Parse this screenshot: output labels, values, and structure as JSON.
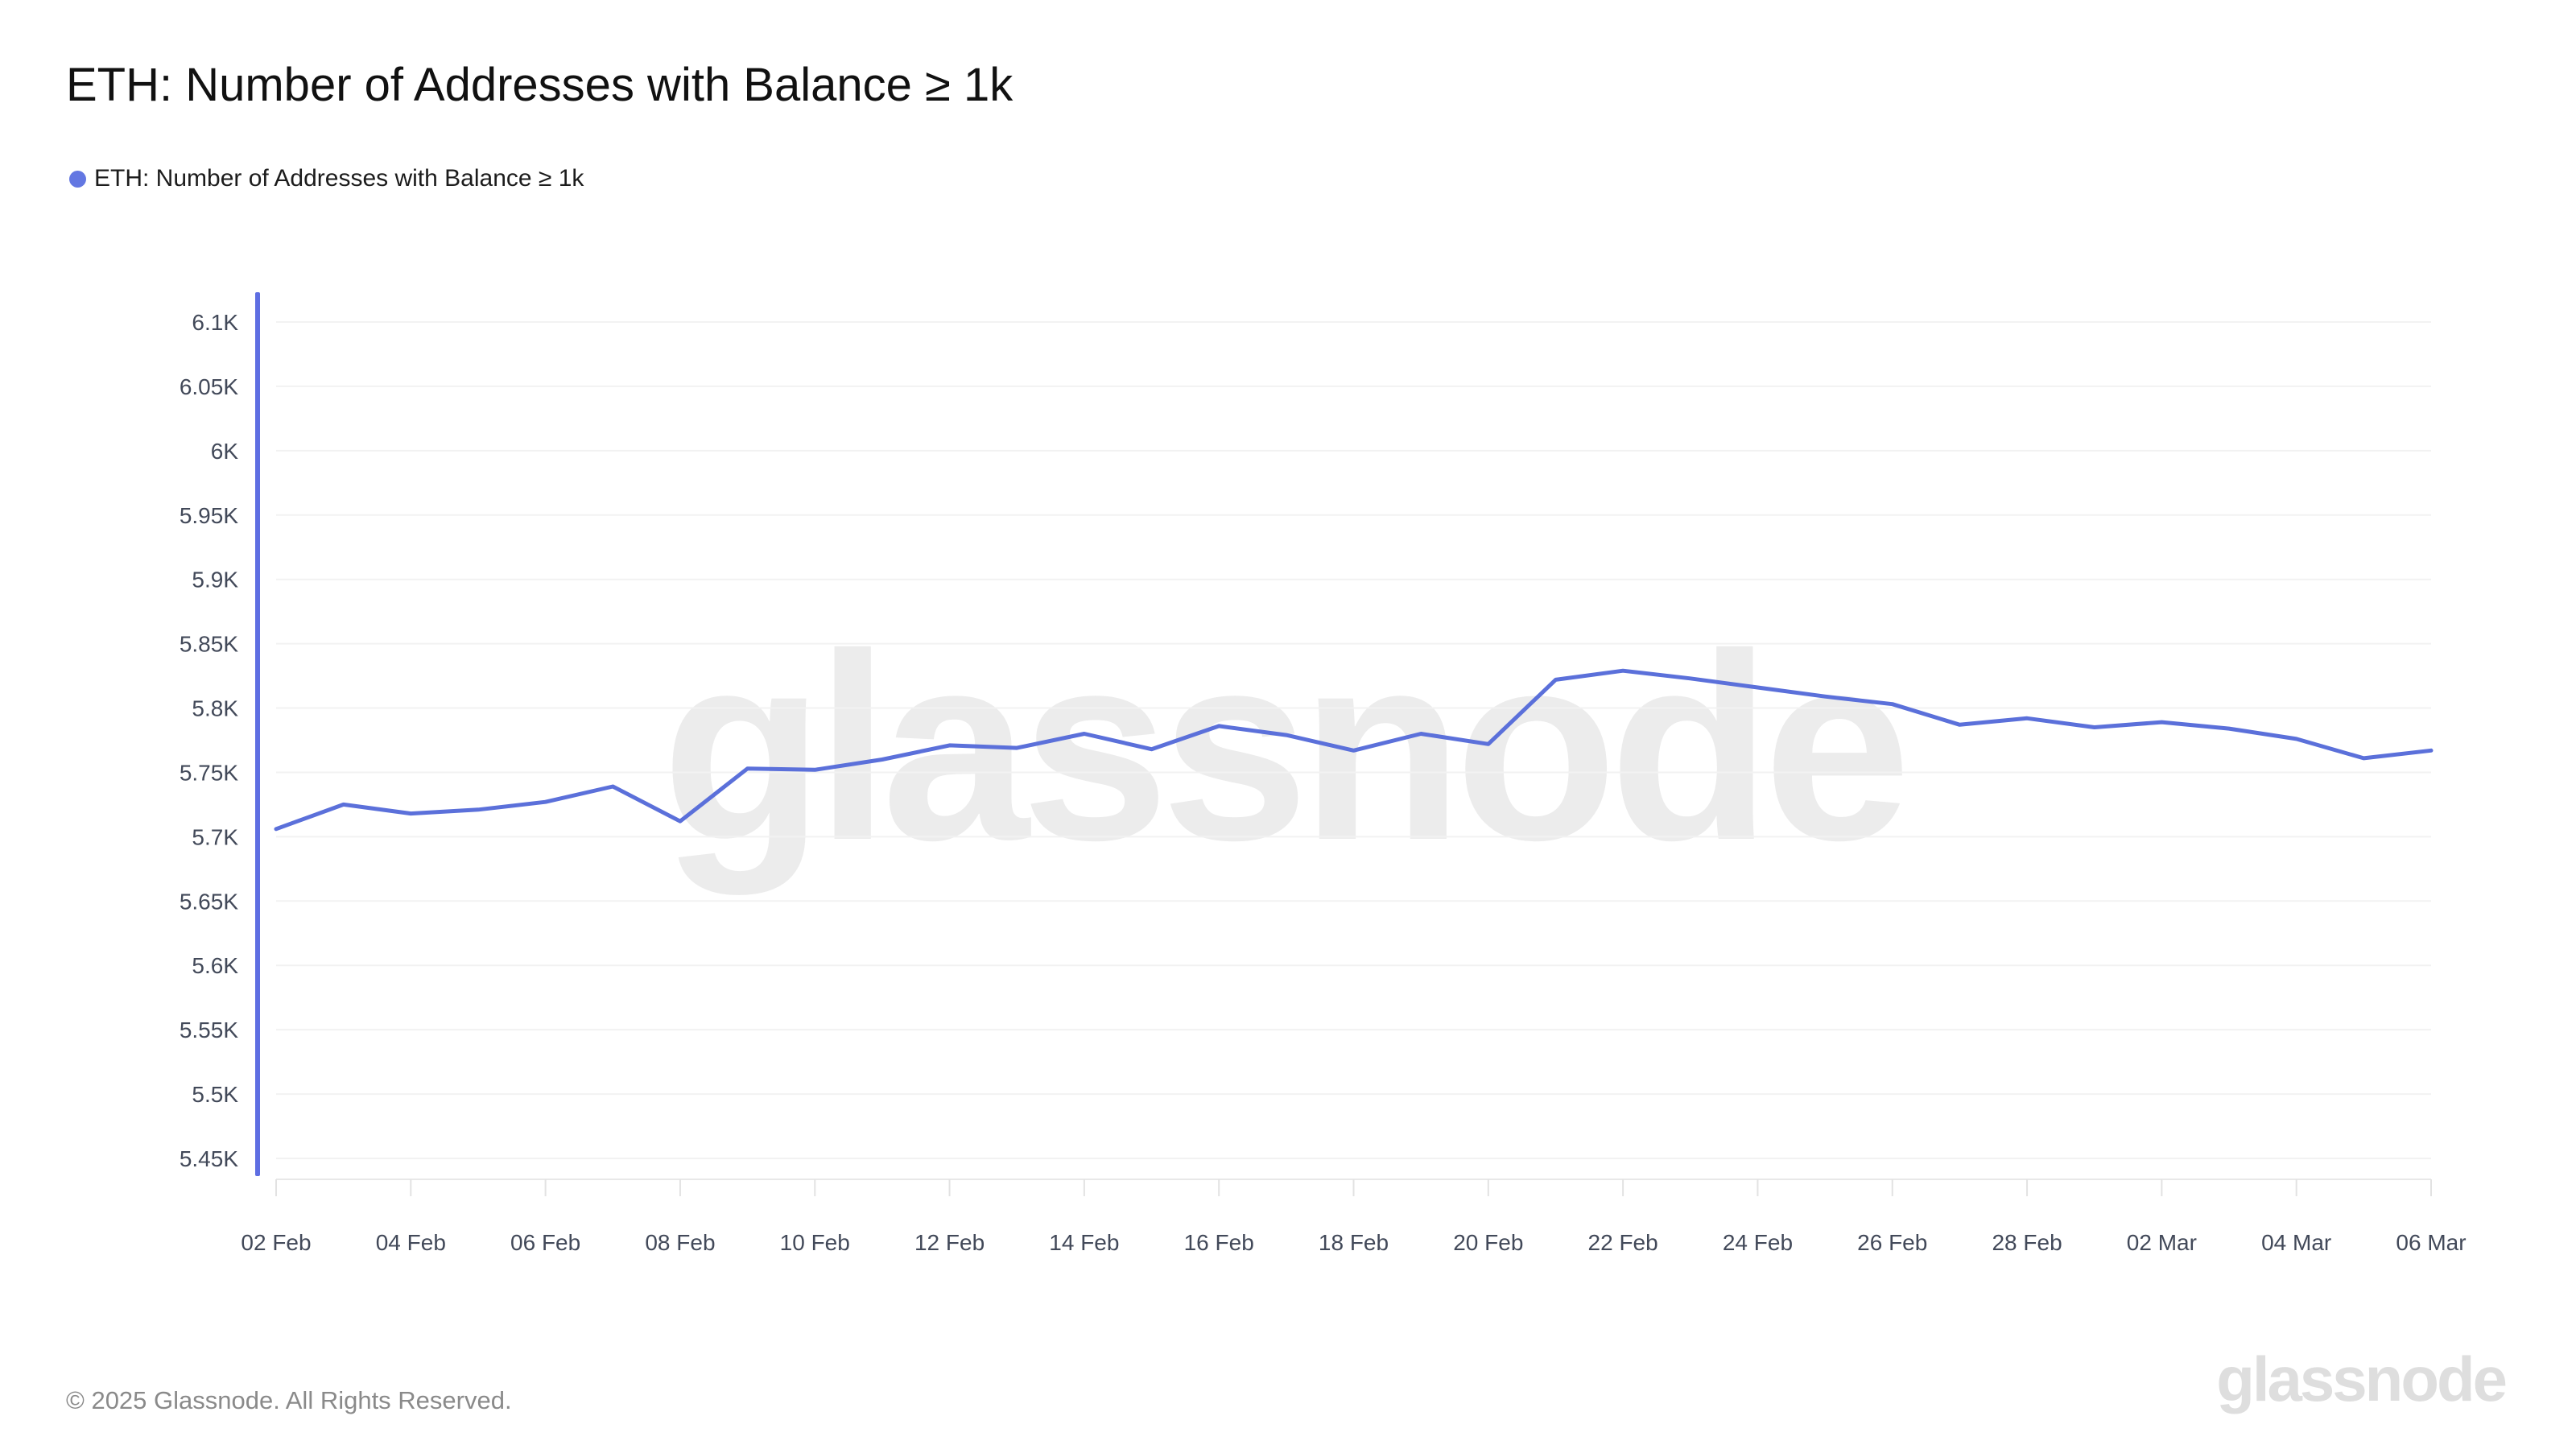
{
  "page": {
    "background": "#ffffff"
  },
  "header": {
    "title": "ETH: Number of Addresses with Balance ≥ 1k"
  },
  "legend": {
    "items": [
      {
        "label": "ETH: Number of Addresses with Balance ≥ 1k",
        "color": "#6377e2"
      }
    ]
  },
  "watermark": {
    "text": "glassnode",
    "color": "#ececec"
  },
  "footer": {
    "copyright": "© 2025 Glassnode. All Rights Reserved.",
    "logo_text": "glassnode"
  },
  "chart_data": {
    "type": "line",
    "title": "ETH: Number of Addresses with Balance ≥ 1k",
    "xlabel": "",
    "ylabel": "",
    "ylim": [
      5.45,
      6.1
    ],
    "grid": "horizontal",
    "legend_position": "top-left",
    "line_color": "#5b70da",
    "axis_line_color": "#5e6ee2",
    "grid_color": "#f2f2f2",
    "baseline_color": "#e8e8e8",
    "tick_mark_color": "#e2e2e2",
    "tick_label_color": "#424959",
    "x": [
      "02 Feb",
      "03 Feb",
      "04 Feb",
      "05 Feb",
      "06 Feb",
      "07 Feb",
      "08 Feb",
      "09 Feb",
      "10 Feb",
      "11 Feb",
      "12 Feb",
      "13 Feb",
      "14 Feb",
      "15 Feb",
      "16 Feb",
      "17 Feb",
      "18 Feb",
      "19 Feb",
      "20 Feb",
      "21 Feb",
      "22 Feb",
      "23 Feb",
      "24 Feb",
      "25 Feb",
      "26 Feb",
      "27 Feb",
      "28 Feb",
      "01 Mar",
      "02 Mar",
      "03 Mar",
      "04 Mar",
      "05 Mar",
      "06 Mar"
    ],
    "series": [
      {
        "name": "ETH: Number of Addresses with Balance ≥ 1k",
        "values_k": [
          5.706,
          5.725,
          5.718,
          5.721,
          5.727,
          5.739,
          5.712,
          5.753,
          5.752,
          5.76,
          5.771,
          5.769,
          5.78,
          5.768,
          5.786,
          5.779,
          5.767,
          5.78,
          5.772,
          5.822,
          5.829,
          5.823,
          5.816,
          5.809,
          5.803,
          5.787,
          5.792,
          5.785,
          5.789,
          5.784,
          5.776,
          5.761,
          5.767
        ]
      }
    ],
    "x_tick_labels": [
      "02 Feb",
      "04 Feb",
      "06 Feb",
      "08 Feb",
      "10 Feb",
      "12 Feb",
      "14 Feb",
      "16 Feb",
      "18 Feb",
      "20 Feb",
      "22 Feb",
      "24 Feb",
      "26 Feb",
      "28 Feb",
      "02 Mar",
      "04 Mar",
      "06 Mar"
    ],
    "y_ticks": [
      {
        "label": "6.1K",
        "value": 6.1
      },
      {
        "label": "6.05K",
        "value": 6.05
      },
      {
        "label": "6K",
        "value": 6.0
      },
      {
        "label": "5.95K",
        "value": 5.95
      },
      {
        "label": "5.9K",
        "value": 5.9
      },
      {
        "label": "5.85K",
        "value": 5.85
      },
      {
        "label": "5.8K",
        "value": 5.8
      },
      {
        "label": "5.75K",
        "value": 5.75
      },
      {
        "label": "5.7K",
        "value": 5.7
      },
      {
        "label": "5.65K",
        "value": 5.65
      },
      {
        "label": "5.6K",
        "value": 5.6
      },
      {
        "label": "5.55K",
        "value": 5.55
      },
      {
        "label": "5.5K",
        "value": 5.5
      },
      {
        "label": "5.45K",
        "value": 5.45
      }
    ]
  }
}
